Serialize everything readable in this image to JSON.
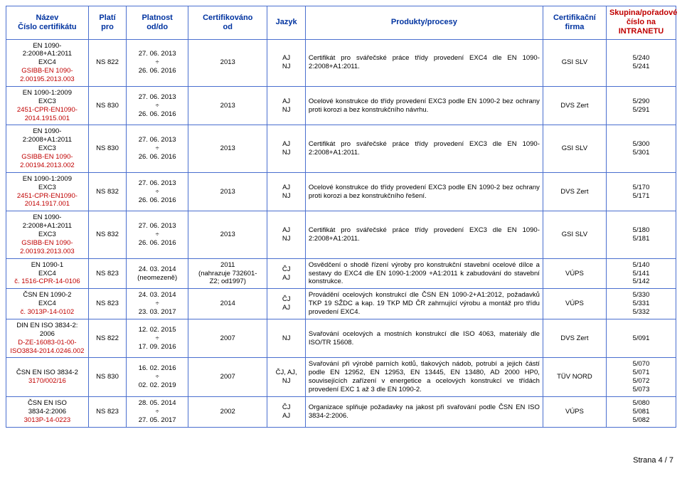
{
  "headers": {
    "name": "Název\nČíslo certifikátu",
    "valid_for": "Platí\npro",
    "valid_from_to": "Platnost\nod/do",
    "cert_from": "Certifikováno\nod",
    "lang": "Jazyk",
    "products": "Produkty/procesy",
    "firm": "Certifikační\nfirma",
    "group": "Skupina/pořadové\nčíslo na\nINTRANETU"
  },
  "rows": [
    {
      "name_black": "EN 1090-\n2:2008+A1:2011\nEXC4",
      "name_red": "GSIBB-EN 1090-\n2.00195.2013.003",
      "valid_for": "NS 822",
      "valid_from_to": "27. 06. 2013\n÷\n26. 06. 2016",
      "cert_from": "2013",
      "lang": "AJ\nNJ",
      "products": "Certifikát pro svářečské práce třídy provedení EXC4 dle EN 1090-2:2008+A1:2011.",
      "firm": "GSI SLV",
      "group": "5/240\n5/241"
    },
    {
      "name_black": "EN 1090-1:2009\nEXC3",
      "name_red": "2451-CPR-EN1090-\n2014.1915.001",
      "valid_for": "NS 830",
      "valid_from_to": "27. 06. 2013\n÷\n26. 06. 2016",
      "cert_from": "2013",
      "lang": "AJ\nNJ",
      "products": "Ocelové konstrukce do třídy provedení EXC3 podle EN 1090-2 bez ochrany proti korozi a bez konstrukčního návrhu.",
      "firm": "DVS Zert",
      "group": "5/290\n5/291"
    },
    {
      "name_black": "EN 1090-\n2:2008+A1:2011\nEXC3",
      "name_red": "GSIBB-EN 1090-\n2.00194.2013.002",
      "valid_for": "NS 830",
      "valid_from_to": "27. 06. 2013\n÷\n26. 06. 2016",
      "cert_from": "2013",
      "lang": "AJ\nNJ",
      "products": "Certifikát pro svářečské práce třídy provedení EXC3 dle EN 1090-2:2008+A1:2011.",
      "firm": "GSI SLV",
      "group": "5/300\n5/301"
    },
    {
      "name_black": "EN 1090-1:2009\nEXC3",
      "name_red": "2451-CPR-EN1090-\n2014.1917.001",
      "valid_for": "NS 832",
      "valid_from_to": "27. 06. 2013\n÷\n26. 06. 2016",
      "cert_from": "2013",
      "lang": "AJ\nNJ",
      "products": "Ocelové konstrukce do třídy provedení EXC3 podle EN 1090-2 bez ochrany proti korozi a bez konstrukčního řešení.",
      "firm": "DVS Zert",
      "group": "5/170\n5/171"
    },
    {
      "name_black": "EN 1090-\n2:2008+A1:2011\nEXC3",
      "name_red": "GSIBB-EN 1090-\n2.00193.2013.003",
      "valid_for": "NS 832",
      "valid_from_to": "27. 06. 2013\n÷\n26. 06. 2016",
      "cert_from": "2013",
      "lang": "AJ\nNJ",
      "products": "Certifikát pro svářečské práce třídy provedení EXC3 dle EN 1090-2:2008+A1:2011.",
      "firm": "GSI SLV",
      "group": "5/180\n5/181"
    },
    {
      "name_black": "EN 1090-1\nEXC4",
      "name_red": "č. 1516-CPR-14-0106",
      "valid_for": "NS 823",
      "valid_from_to": "24. 03. 2014\n(neomezeně)",
      "cert_from": "2011\n(nahrazuje 732601-\nZ2; od1997)",
      "lang": "ČJ\nAJ",
      "products": "Osvědčení o shodě řízení výroby pro konstrukční stavební ocelové dílce a sestavy do EXC4 dle EN 1090-1:2009 +A1:2011 k zabudování do stavební konstrukce.",
      "firm": "VÚPS",
      "group": "5/140\n5/141\n5/142"
    },
    {
      "name_black": "ČSN EN 1090-2\nEXC4",
      "name_red": "č. 3013P-14-0102",
      "valid_for": "NS 823",
      "valid_from_to": "24. 03. 2014\n÷\n23. 03. 2017",
      "cert_from": "2014",
      "lang": "ČJ\nAJ",
      "products": "Provádění ocelových konstrukcí dle ČSN EN 1090-2+A1:2012, požadavků TKP 19 SŽDC a kap. 19 TKP MD ČR zahrnující výrobu a montáž pro třídu provedení EXC4.",
      "firm": "VÚPS",
      "group": "5/330\n5/331\n5/332"
    },
    {
      "name_black": "DIN EN ISO 3834-2:\n2006",
      "name_red": "D-ZE-16083-01-00-\nISO3834-2014.0246.002",
      "valid_for": "NS 822",
      "valid_from_to": "12. 02. 2015\n÷\n17. 09. 2016",
      "cert_from": "2007",
      "lang": "NJ",
      "products": "Svařování ocelových a mostních konstrukcí dle ISO 4063, materiály dle ISO/TR 15608.",
      "firm": "DVS Zert",
      "group": "5/091"
    },
    {
      "name_black": "ČSN EN ISO 3834-2",
      "name_red": "3170/002/16",
      "valid_for": "NS 830",
      "valid_from_to": "16. 02. 2016\n÷\n02. 02. 2019",
      "cert_from": "2007",
      "lang": "ČJ, AJ,\nNJ",
      "products": "Svařování při výrobě parních kotlů, tlakových nádob, potrubí a jejich částí podle EN 12952, EN 12953, EN 13445, EN 13480, AD 2000 HP0, souvisejících zařízení v energetice a ocelových konstrukcí ve třídách provedení EXC 1 až 3 dle EN 1090-2.",
      "firm": "TÜV NORD",
      "group": "5/070\n5/071\n5/072\n5/073"
    },
    {
      "name_black": "ČSN EN ISO\n3834-2:2006",
      "name_red": "3013P-14-0223",
      "valid_for": "NS 823",
      "valid_from_to": "28. 05. 2014\n÷\n27. 05. 2017",
      "cert_from": "2002",
      "lang": "ČJ\nAJ",
      "products": "Organizace splňuje požadavky na jakost při svařování podle ČSN EN ISO 3834-2:2006.",
      "firm": "VÚPS",
      "group": "5/080\n5/081\n5/082"
    }
  ],
  "footer": "Strana 4 / 7"
}
